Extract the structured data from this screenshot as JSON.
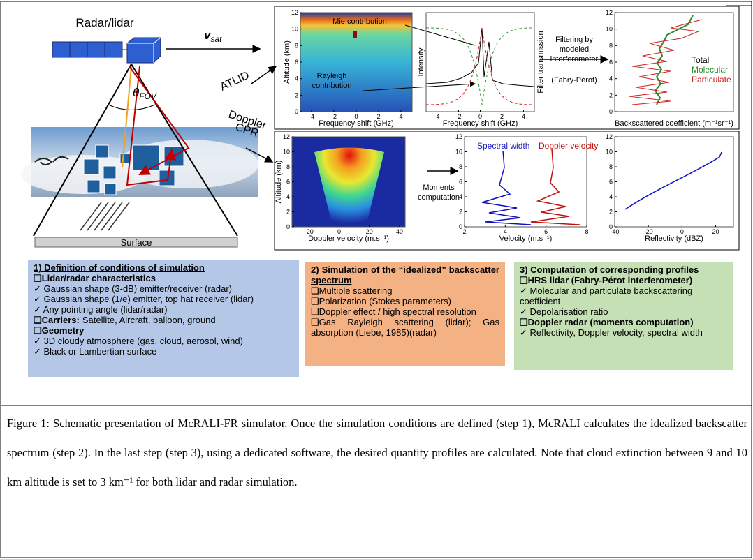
{
  "schematic": {
    "radar_label": "Radar/lidar",
    "vsat": "v",
    "vsat_sub": "sat",
    "theta": "θ",
    "theta_sub": "FOV",
    "atlid": "ATLID",
    "doppler": "Doppler",
    "cpr": "CPR",
    "surface": "Surface"
  },
  "panels": [
    {
      "ylabel": "Altitude (km)",
      "xlabel": "Frequency shift (GHz)",
      "xticks": [
        -4,
        -2,
        0,
        2,
        4
      ],
      "yticks": [
        0,
        2,
        4,
        6,
        8,
        10,
        12
      ],
      "annotations": [
        "Mie contribution",
        "Rayleigh",
        "contribution"
      ]
    },
    {
      "ylabel": "Intensity",
      "y2label": "Filter transmission",
      "xlabel": "Frequency shift (GHz)",
      "xticks": [
        -4,
        -2,
        0,
        2,
        4
      ]
    },
    {
      "xlabel": "Backscattered coefficient (m⁻¹sr⁻¹)",
      "yticks": [
        0,
        2,
        4,
        6,
        8,
        10,
        12
      ],
      "legend": [
        "Total",
        "Molecular",
        "Particulate"
      ]
    },
    {
      "ylabel": "Altitude (km)",
      "xlabel": "Doppler velocity (m.s⁻¹)",
      "xticks": [
        -20,
        0,
        20,
        40
      ],
      "yticks": [
        0,
        2,
        4,
        6,
        8,
        10,
        12
      ]
    },
    {
      "xlabel": "Velocity (m.s⁻¹)",
      "xticks": [
        2,
        4,
        6,
        8
      ],
      "yticks": [
        0,
        2,
        4,
        6,
        8,
        10,
        12
      ],
      "legend": [
        "Spectral width",
        "Doppler velocity"
      ]
    },
    {
      "xlabel": "Reflectivity (dBZ)",
      "xticks": [
        -40,
        -20,
        0,
        20
      ],
      "yticks": [
        0,
        2,
        4,
        6,
        8,
        10,
        12
      ]
    }
  ],
  "filtering": [
    "Filtering by",
    "modeled",
    "interferometer",
    "(Fabry-Pérot)"
  ],
  "moments": [
    "Moments",
    "computation"
  ],
  "steps": [
    {
      "title": "1) Definition of conditions of simulation",
      "items": [
        {
          "lead": "❑Lidar/radar characteristics"
        },
        {
          "text": "✓ Gaussian shape (3-dB) emitter/receiver (radar)"
        },
        {
          "text": "✓ Gaussian shape (1/e) emitter, top hat receiver (lidar)"
        },
        {
          "text": "✓ Any pointing angle (lidar/radar)"
        },
        {
          "lead": "❑Carriers:",
          "text": "Satellite, Aircraft, balloon, ground"
        },
        {
          "lead": "❑Geometry"
        },
        {
          "text": "✓ 3D cloudy atmosphere (gas, cloud, aerosol, wind)"
        },
        {
          "text": "✓ Black or Lambertian surface"
        }
      ]
    },
    {
      "title": "2) Simulation of the “idealized” backscatter spectrum",
      "items": [
        {
          "text": "❑Multiple scattering"
        },
        {
          "text": "❑Polarization (Stokes parameters)"
        },
        {
          "text": "❑Doppler effect / high spectral resolution"
        },
        {
          "text": "❑Gas Rayleigh scattering (lidar); Gas absorption (Liebe, 1985)(radar)"
        }
      ]
    },
    {
      "title": "3) Computation of corresponding profiles",
      "items": [
        {
          "lead": "❑HRS lidar (Fabry-Pérot interferometer)"
        },
        {
          "text": "✓ Molecular and particulate backscattering coefficient"
        },
        {
          "text": "✓ Depolarisation ratio"
        },
        {
          "lead": "❑Doppler radar (moments computation)"
        },
        {
          "text": "✓ Reflectivity, Doppler velocity, spectral width"
        }
      ]
    }
  ],
  "caption": "Figure 1: Schematic presentation of McRALI-FR simulator. Once the simulation conditions are defined (step 1), McRALI calculates the idealized backscatter spectrum (step 2). In the last step (step 3), using a dedicated software, the desired quantity profiles are calculated. Note that cloud extinction between 9 and 10 km altitude is set to 3 km⁻¹ for both lidar and radar simulation."
}
